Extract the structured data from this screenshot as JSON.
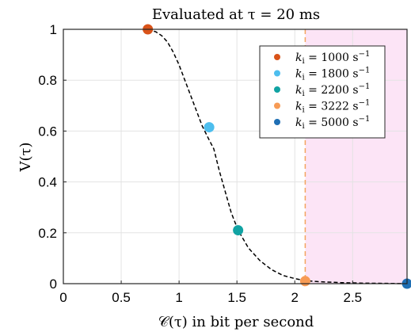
{
  "chart_data": {
    "type": "scatter",
    "title": "Evaluated at τ = 20 ms",
    "xlabel": "𝒞(τ) in bit per second",
    "ylabel": "V(τ)",
    "xlim": [
      0,
      2.97
    ],
    "ylim": [
      0,
      1
    ],
    "xticks": [
      "0",
      "0.5",
      "1",
      "1.5",
      "2",
      "2.5"
    ],
    "yticks": [
      "0",
      "0.2",
      "0.4",
      "0.6",
      "0.8",
      "1"
    ],
    "grid": true,
    "legend_position": "top-right",
    "shaded_region": {
      "x_start": 2.09,
      "x_end": 2.97,
      "color": "#fce4f6"
    },
    "threshold_line": {
      "x": 2.09,
      "color": "#f4a460"
    },
    "curve": {
      "style": "dashed",
      "color": "#000000",
      "x": [
        0.73,
        0.8,
        0.85,
        0.9,
        0.95,
        1.0,
        1.05,
        1.1,
        1.15,
        1.2,
        1.26,
        1.3,
        1.35,
        1.4,
        1.45,
        1.51,
        1.6,
        1.7,
        1.8,
        1.9,
        2.0,
        2.09,
        2.2,
        2.4,
        2.6,
        2.8,
        2.97
      ],
      "y": [
        1.0,
        0.99,
        0.975,
        0.95,
        0.91,
        0.86,
        0.8,
        0.74,
        0.68,
        0.62,
        0.565,
        0.53,
        0.44,
        0.36,
        0.28,
        0.21,
        0.14,
        0.09,
        0.055,
        0.032,
        0.02,
        0.012,
        0.008,
        0.004,
        0.002,
        0.001,
        0.0
      ]
    },
    "series": [
      {
        "name": "k_i = 1000 s⁻¹",
        "name_k": "k",
        "name_sub": "i",
        "name_val": " = 1000 s",
        "name_sup": "−1",
        "x": 0.73,
        "y": 1.0,
        "color": "#d95319"
      },
      {
        "name": "k_i = 1800 s⁻¹",
        "name_k": "k",
        "name_sub": "i",
        "name_val": " = 1800 s",
        "name_sup": "−1",
        "x": 1.26,
        "y": 0.615,
        "color": "#4dbeee"
      },
      {
        "name": "k_i = 2200 s⁻¹",
        "name_k": "k",
        "name_sub": "i",
        "name_val": " = 2200 s",
        "name_sup": "−1",
        "x": 1.51,
        "y": 0.21,
        "color": "#11a3a3"
      },
      {
        "name": "k_i = 3222 s⁻¹",
        "name_k": "k",
        "name_sub": "i",
        "name_val": " = 3222 s",
        "name_sup": "−1",
        "x": 2.09,
        "y": 0.01,
        "color": "#f79b55"
      },
      {
        "name": "k_i = 5000 s⁻¹",
        "name_k": "k",
        "name_sub": "i",
        "name_val": " = 5000 s",
        "name_sup": "−1",
        "x": 2.97,
        "y": 0.0,
        "color": "#1f6fb4"
      }
    ]
  }
}
